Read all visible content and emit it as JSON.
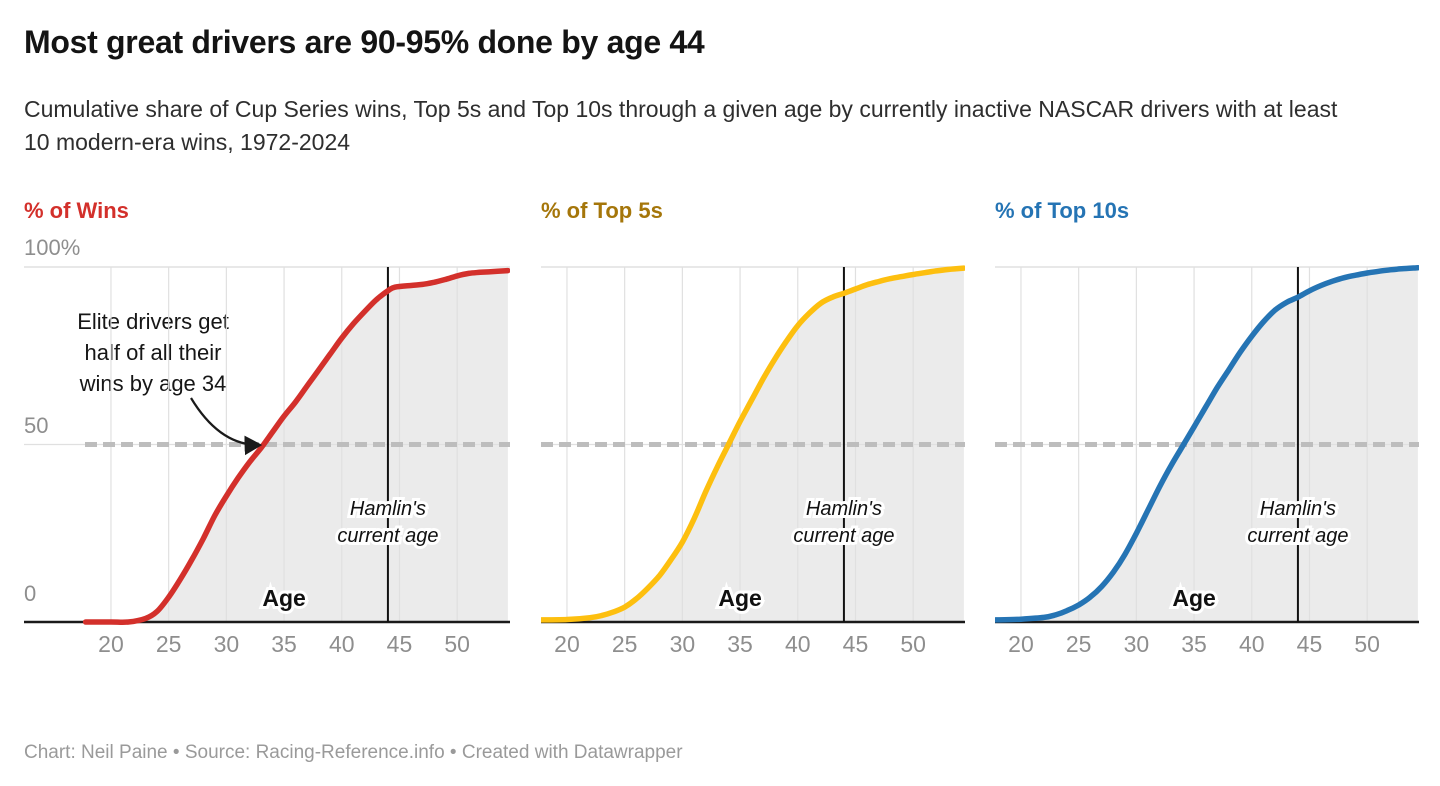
{
  "title": "Most great drivers are 90-95% done by age 44",
  "subtitle": "Cumulative share of Cup Series wins, Top 5s and Top 10s through a given age by currently inactive NASCAR drivers with at least 10 modern-era wins, 1972-2024",
  "footer": "Chart: Neil Paine • Source: Racing-Reference.info • Created with Datawrapper",
  "colors": {
    "wins_line": "#d3302b",
    "wins_label": "#d3302b",
    "top5s_line": "#fdbf0f",
    "top5s_label": "#a5760a",
    "top10s_line": "#2574b4",
    "top10s_label": "#2574b4",
    "area_fill": "#ebebeb",
    "gridline": "#e0e0e0",
    "dashed_guide": "#bdbdbd",
    "axis_line": "#1a1a1a",
    "reference_line": "#111111",
    "tick_text": "#8e8e8e",
    "annotation_text": "#161616"
  },
  "chart_data": {
    "type": "line",
    "layout": "three small-multiple panels, shared axes, area fill under each curve, legend off, grid on",
    "x_range": [
      17.75,
      54.4
    ],
    "y_range": [
      0,
      100
    ],
    "x_ticks": [
      20,
      25,
      30,
      35,
      40,
      45,
      50
    ],
    "y_tick_labels": [
      "100%",
      "50",
      "0"
    ],
    "x_axis_label": "Age",
    "dashed_guide_y": 50,
    "reference_line": {
      "x": 44,
      "label_lines": [
        "Hamlin's",
        "current age"
      ]
    },
    "annotation": {
      "lines": [
        "Elite drivers get",
        "half of all their",
        "wins by age 34"
      ],
      "arrow_points_to": {
        "x": 34,
        "y": 50
      }
    },
    "panels": [
      {
        "name": "wins",
        "label": "% of Wins",
        "label_color": "#d3302b",
        "line_color": "#d3302b",
        "points": [
          [
            17.8,
            0
          ],
          [
            20,
            0
          ],
          [
            21.5,
            0
          ],
          [
            23,
            1
          ],
          [
            24,
            3
          ],
          [
            25,
            7
          ],
          [
            26,
            12
          ],
          [
            27,
            17.5
          ],
          [
            28,
            23.5
          ],
          [
            29,
            30
          ],
          [
            30,
            35.5
          ],
          [
            31,
            40.5
          ],
          [
            32,
            45
          ],
          [
            33,
            49
          ],
          [
            34,
            53.5
          ],
          [
            35,
            58
          ],
          [
            36,
            62
          ],
          [
            37,
            66.5
          ],
          [
            38,
            71
          ],
          [
            39,
            75.5
          ],
          [
            40,
            80
          ],
          [
            41,
            84
          ],
          [
            42,
            87.5
          ],
          [
            43,
            90.8
          ],
          [
            44,
            93.3
          ],
          [
            44.6,
            94.3
          ],
          [
            46,
            94.8
          ],
          [
            47,
            95.1
          ],
          [
            48,
            95.7
          ],
          [
            49,
            96.5
          ],
          [
            50,
            97.5
          ],
          [
            51,
            98.2
          ],
          [
            52,
            98.5
          ],
          [
            53.5,
            98.8
          ],
          [
            54.4,
            99
          ]
        ]
      },
      {
        "name": "top5s",
        "label": "% of Top 5s",
        "label_color": "#a5760a",
        "line_color": "#fdbf0f",
        "points": [
          [
            17.8,
            0.6
          ],
          [
            20,
            0.7
          ],
          [
            22,
            1.2
          ],
          [
            23,
            1.8
          ],
          [
            24,
            2.8
          ],
          [
            25,
            4.2
          ],
          [
            26,
            6.5
          ],
          [
            27,
            9.5
          ],
          [
            28,
            13
          ],
          [
            29,
            17.5
          ],
          [
            30,
            22.5
          ],
          [
            31,
            29
          ],
          [
            32,
            36.5
          ],
          [
            33,
            43.5
          ],
          [
            34,
            50
          ],
          [
            35,
            56.5
          ],
          [
            36,
            62.5
          ],
          [
            37,
            68.5
          ],
          [
            38,
            74
          ],
          [
            39,
            79
          ],
          [
            40,
            83.5
          ],
          [
            41,
            87
          ],
          [
            42,
            89.8
          ],
          [
            43,
            91.5
          ],
          [
            44,
            92.6
          ],
          [
            45,
            93.8
          ],
          [
            46,
            95
          ],
          [
            47,
            95.9
          ],
          [
            48,
            96.7
          ],
          [
            49,
            97.3
          ],
          [
            50,
            97.9
          ],
          [
            51,
            98.4
          ],
          [
            52,
            98.9
          ],
          [
            53,
            99.3
          ],
          [
            54.4,
            99.7
          ]
        ]
      },
      {
        "name": "top10s",
        "label": "% of Top 10s",
        "label_color": "#2574b4",
        "line_color": "#2574b4",
        "points": [
          [
            17.8,
            0.6
          ],
          [
            20,
            0.8
          ],
          [
            22,
            1.3
          ],
          [
            23,
            2
          ],
          [
            24,
            3.2
          ],
          [
            25,
            4.8
          ],
          [
            26,
            7
          ],
          [
            27,
            10
          ],
          [
            28,
            14
          ],
          [
            29,
            19
          ],
          [
            30,
            25
          ],
          [
            31,
            31.5
          ],
          [
            32,
            38
          ],
          [
            33,
            44
          ],
          [
            34,
            49.5
          ],
          [
            35,
            55
          ],
          [
            36,
            60.5
          ],
          [
            37,
            66
          ],
          [
            38,
            71
          ],
          [
            39,
            76
          ],
          [
            40,
            80.5
          ],
          [
            41,
            84.5
          ],
          [
            42,
            87.8
          ],
          [
            43,
            90
          ],
          [
            44,
            91.5
          ],
          [
            45,
            93.3
          ],
          [
            46,
            94.8
          ],
          [
            47,
            96
          ],
          [
            48,
            97
          ],
          [
            49,
            97.7
          ],
          [
            50,
            98.3
          ],
          [
            51,
            98.8
          ],
          [
            52,
            99.2
          ],
          [
            53,
            99.5
          ],
          [
            54.4,
            99.8
          ]
        ]
      }
    ]
  }
}
